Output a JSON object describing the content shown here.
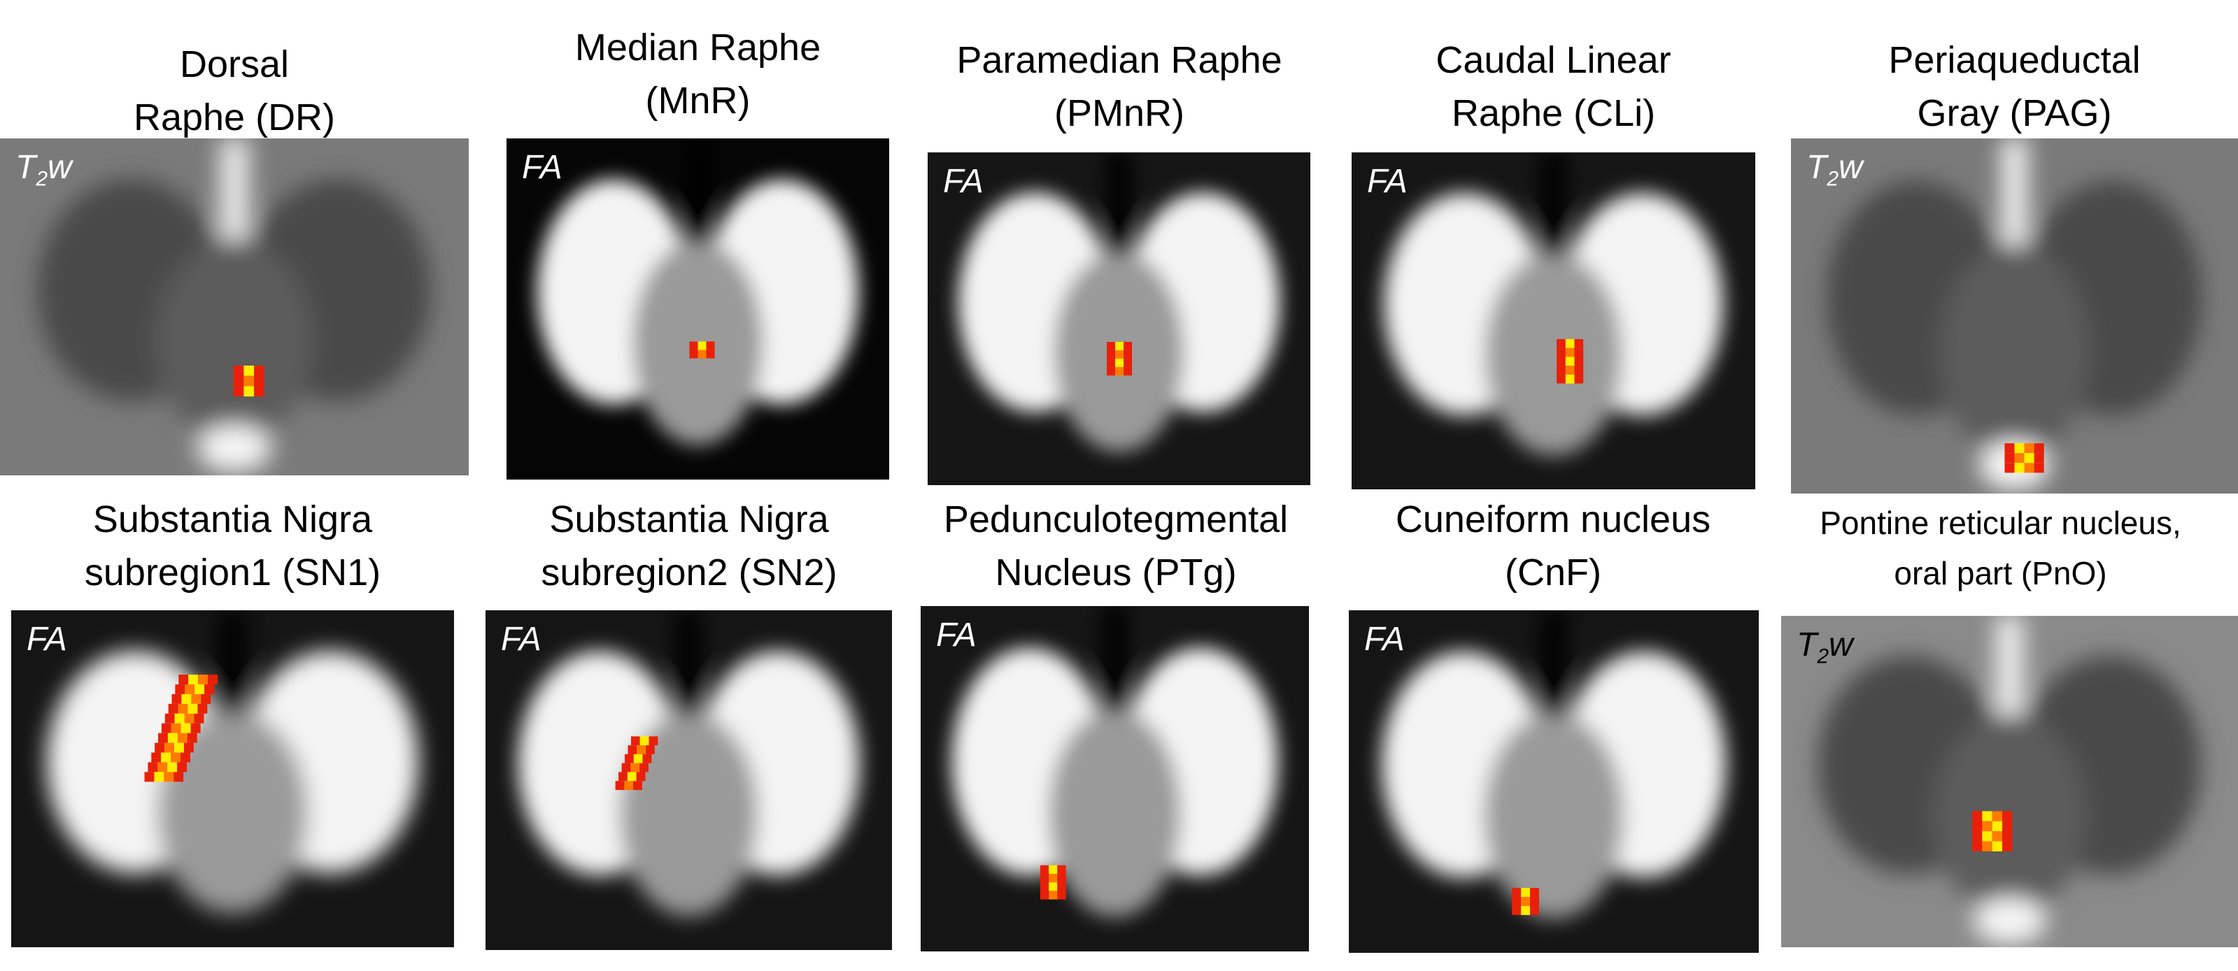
{
  "panels": [
    {
      "title1": "Dorsal",
      "title2": "Raphe (DR)",
      "modality": "T",
      "modality_sub": "2",
      "modality_suffix": "w",
      "style": "t2"
    },
    {
      "title1": "Median Raphe",
      "title2": "(MnR)",
      "modality": "FA",
      "style": "fa-dark"
    },
    {
      "title1": "Paramedian Raphe",
      "title2": "(PMnR)",
      "modality": "FA",
      "style": "fa"
    },
    {
      "title1": "Caudal Linear",
      "title2": "Raphe (CLi)",
      "modality": "FA",
      "style": "fa"
    },
    {
      "title1": "Periaqueductal",
      "title2": "Gray (PAG)",
      "modality": "T",
      "modality_sub": "2",
      "modality_suffix": "w",
      "style": "t2"
    },
    {
      "title1": "Substantia Nigra",
      "title2": "subregion1 (SN1)",
      "modality": "FA",
      "style": "fa"
    },
    {
      "title1": "Substantia Nigra",
      "title2": "subregion2 (SN2)",
      "modality": "FA",
      "style": "fa"
    },
    {
      "title1": "Pedunculotegmental",
      "title2": "Nucleus (PTg)",
      "modality": "FA",
      "style": "fa"
    },
    {
      "title1": "Cuneiform nucleus",
      "title2": "(CnF)",
      "modality": "FA",
      "style": "fa"
    },
    {
      "title1": "Pontine reticular nucleus,",
      "title2": "oral part (PnO)",
      "modality": "T",
      "modality_sub": "2",
      "modality_suffix": "w",
      "style": "t2-light"
    }
  ],
  "colors": {
    "overlay_red": "#e8200a",
    "overlay_orange": "#ff7a00",
    "overlay_yellow": "#ffee00"
  }
}
